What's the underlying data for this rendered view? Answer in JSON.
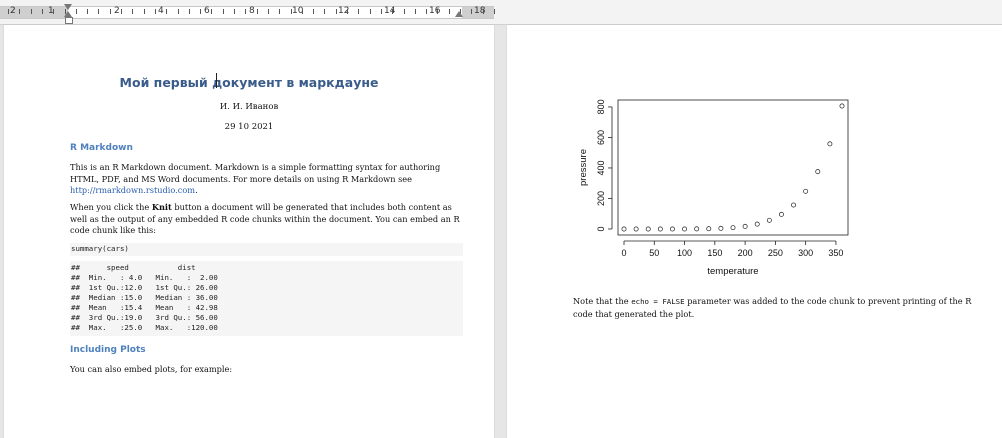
{
  "ruler": {
    "numbers": [
      "2",
      "1",
      "",
      "2",
      "4",
      "6",
      "8",
      "10",
      "12",
      "14",
      "16",
      "18"
    ]
  },
  "page1": {
    "title": "Мой первый документ в маркдауне",
    "author": "И. И. Иванов",
    "date": "29 10 2021",
    "sections": {
      "rmarkdown_heading": "R Markdown",
      "para1_text": "This is an R Markdown document. Markdown is a simple formatting syntax for authoring HTML, PDF, and MS Word documents. For more details on using R Markdown see ",
      "para1_link": "http://rmarkdown.rstudio.com",
      "para1_end": ".",
      "para2_start": "When you click the ",
      "para2_bold": "Knit",
      "para2_end": " button a document will be generated that includes both content as well as the output of any embedded R code chunks within the document. You can embed an R code chunk like this:",
      "code_call": "summary(cars)",
      "code_output": [
        "##      speed           dist       ",
        "##  Min.   : 4.0   Min.   :  2.00  ",
        "##  1st Qu.:12.0   1st Qu.: 26.00  ",
        "##  Median :15.0   Median : 36.00  ",
        "##  Mean   :15.4   Mean   : 42.98  ",
        "##  3rd Qu.:19.0   3rd Qu.: 56.00  ",
        "##  Max.   :25.0   Max.   :120.00  "
      ],
      "plots_heading": "Including Plots",
      "plots_para": "You can also embed plots, for example:"
    }
  },
  "page2": {
    "note_start": "Note that the ",
    "note_code": "echo = FALSE",
    "note_end": " parameter was added to the code chunk to prevent printing of the R code that generated the plot."
  },
  "chart_data": {
    "type": "scatter",
    "title": "",
    "xlabel": "temperature",
    "ylabel": "pressure",
    "x_ticks": [
      0,
      50,
      100,
      150,
      200,
      250,
      300,
      350
    ],
    "y_ticks": [
      0,
      200,
      400,
      600,
      800
    ],
    "xlim": [
      0,
      360
    ],
    "ylim": [
      0,
      806
    ],
    "grid": false,
    "x": [
      0,
      20,
      40,
      60,
      80,
      100,
      120,
      140,
      160,
      180,
      200,
      220,
      240,
      260,
      280,
      300,
      320,
      340,
      360
    ],
    "y": [
      0.0002,
      0.0012,
      0.006,
      0.03,
      0.09,
      0.27,
      0.75,
      1.85,
      4.2,
      8.8,
      17.3,
      32.1,
      57,
      96,
      157,
      247,
      376,
      558,
      806
    ],
    "marker": "open-circle"
  }
}
